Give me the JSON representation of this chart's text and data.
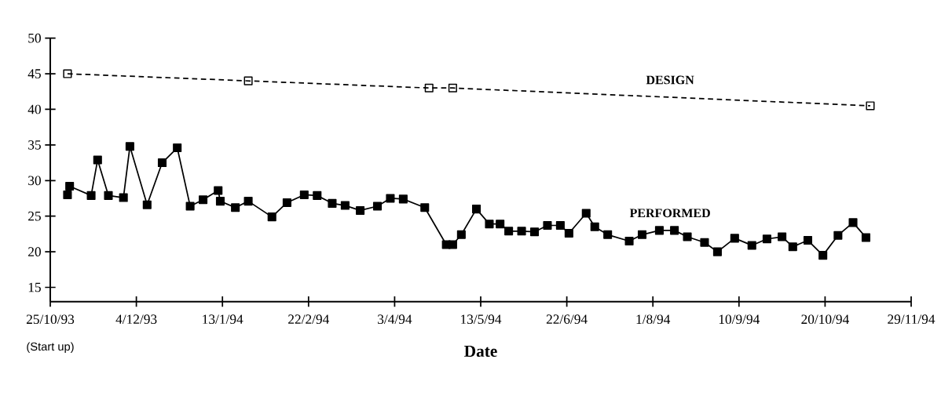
{
  "chart_data": {
    "type": "line",
    "xlabel": "Date",
    "xlim": [
      "1993-10-25",
      "1994-11-29"
    ],
    "ylim": [
      13,
      50
    ],
    "xticks": [
      {
        "value": "1993-10-25",
        "label": "25/10/93"
      },
      {
        "value": "1993-12-04",
        "label": "4/12/93"
      },
      {
        "value": "1994-01-13",
        "label": "13/1/94"
      },
      {
        "value": "1994-02-22",
        "label": "22/2/94"
      },
      {
        "value": "1994-04-03",
        "label": "3/4/94"
      },
      {
        "value": "1994-05-13",
        "label": "13/5/94"
      },
      {
        "value": "1994-06-22",
        "label": "22/6/94"
      },
      {
        "value": "1994-08-01",
        "label": "1/8/94"
      },
      {
        "value": "1994-09-10",
        "label": "10/9/94"
      },
      {
        "value": "1994-10-20",
        "label": "20/10/94"
      },
      {
        "value": "1994-11-29",
        "label": "29/11/94"
      }
    ],
    "yticks": [
      15,
      20,
      25,
      30,
      35,
      40,
      45,
      50
    ],
    "annotations": [
      "(Start up)"
    ],
    "series": [
      {
        "name": "DESIGN",
        "color": "#000000",
        "line_style": "dashed",
        "marker": "square",
        "x": [
          "1993-11-02",
          "1994-01-25",
          "1994-04-19",
          "1994-04-30",
          "1994-11-10"
        ],
        "values": [
          45,
          44,
          43,
          43,
          40.5
        ]
      },
      {
        "name": "PERFORMED",
        "color": "#000000",
        "line_style": "solid",
        "marker": "square",
        "x": [
          "1993-11-02",
          "1993-11-03",
          "1993-11-13",
          "1993-11-16",
          "1993-11-21",
          "1993-11-28",
          "1993-12-01",
          "1993-12-09",
          "1993-12-16",
          "1993-12-23",
          "1993-12-29",
          "1994-01-04",
          "1994-01-11",
          "1994-01-12",
          "1994-01-19",
          "1994-01-25",
          "1994-02-05",
          "1994-02-12",
          "1994-02-20",
          "1994-02-26",
          "1994-03-05",
          "1994-03-11",
          "1994-03-18",
          "1994-03-26",
          "1994-04-01",
          "1994-04-07",
          "1994-04-17",
          "1994-04-27",
          "1994-04-30",
          "1994-05-04",
          "1994-05-11",
          "1994-05-17",
          "1994-05-22",
          "1994-05-26",
          "1994-06-01",
          "1994-06-07",
          "1994-06-13",
          "1994-06-19",
          "1994-06-23",
          "1994-07-01",
          "1994-07-05",
          "1994-07-11",
          "1994-07-21",
          "1994-07-27",
          "1994-08-04",
          "1994-08-11",
          "1994-08-17",
          "1994-08-25",
          "1994-08-31",
          "1994-09-08",
          "1994-09-16",
          "1994-09-23",
          "1994-09-30",
          "1994-10-05",
          "1994-10-12",
          "1994-10-19",
          "1994-10-26",
          "1994-11-02",
          "1994-11-08"
        ],
        "values": [
          28.0,
          29.2,
          27.9,
          32.9,
          27.9,
          27.6,
          34.8,
          26.6,
          32.5,
          34.6,
          26.4,
          27.3,
          28.6,
          27.1,
          26.2,
          27.1,
          24.9,
          26.9,
          28.0,
          27.9,
          26.8,
          26.5,
          25.8,
          26.4,
          27.5,
          27.4,
          26.2,
          21.0,
          21.0,
          22.4,
          26.0,
          23.9,
          23.9,
          22.9,
          22.9,
          22.8,
          23.7,
          23.7,
          22.6,
          25.4,
          23.5,
          22.4,
          21.5,
          22.4,
          23.0,
          23.0,
          22.1,
          21.3,
          20.0,
          21.9,
          20.9,
          21.8,
          22.1,
          20.7,
          21.6,
          19.5,
          22.3,
          24.1,
          22.0
        ]
      }
    ]
  }
}
